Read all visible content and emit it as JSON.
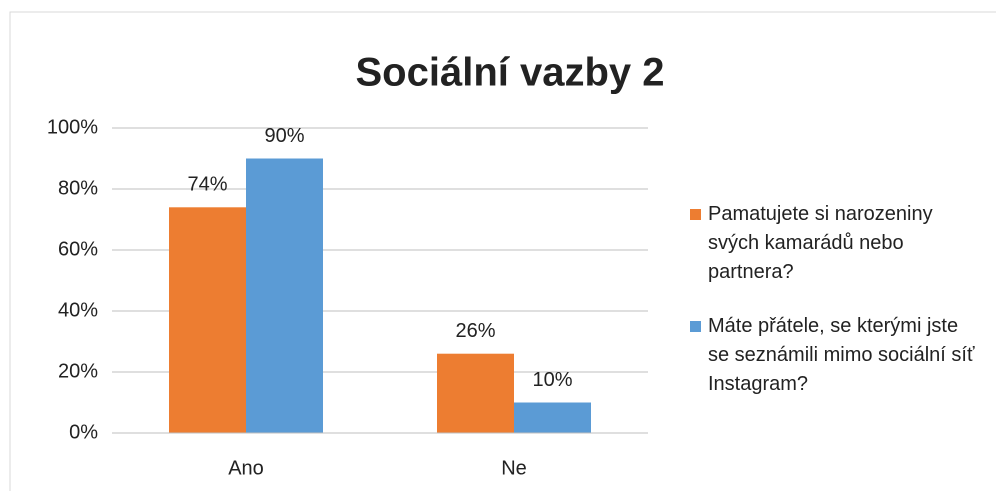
{
  "chart_data": {
    "type": "bar",
    "title": "Sociální vazby 2",
    "categories": [
      "Ano",
      "Ne"
    ],
    "series": [
      {
        "name": "Pamatujete si narozeniny svých kamarádů nebo partnera?",
        "color": "#ed7d31",
        "values": [
          74,
          26
        ],
        "value_labels": [
          "74%",
          "26%"
        ]
      },
      {
        "name": "Máte přátele, se kterými jste se seznámili mimo sociální síť Instagram?",
        "color": "#5b9bd5",
        "values": [
          90,
          10
        ],
        "value_labels": [
          "90%",
          "10%"
        ]
      }
    ],
    "ylim": [
      0,
      100
    ],
    "yticks": [
      {
        "value": 0,
        "label": "0%"
      },
      {
        "value": 20,
        "label": "20%"
      },
      {
        "value": 40,
        "label": "40%"
      },
      {
        "value": 60,
        "label": "60%"
      },
      {
        "value": 80,
        "label": "80%"
      },
      {
        "value": 100,
        "label": "100%"
      }
    ],
    "grid": true,
    "legend": "right"
  }
}
